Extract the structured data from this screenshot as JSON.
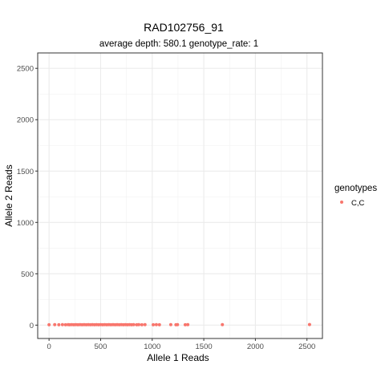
{
  "chart_data": {
    "type": "scatter",
    "title": "RAD102756_91",
    "subtitle": "average depth:  580.1  genotype_rate:  1",
    "xlabel": "Allele 1 Reads",
    "ylabel": "Allele 2 Reads",
    "xlim": [
      -110,
      2650
    ],
    "ylim": [
      -130,
      2650
    ],
    "x_ticks": [
      0,
      500,
      1000,
      1500,
      2000,
      2500
    ],
    "y_ticks": [
      0,
      500,
      1000,
      1500,
      2000,
      2500
    ],
    "x_tick_labels": [
      "0",
      "500",
      "1000",
      "1500",
      "2000",
      "2500"
    ],
    "y_tick_labels": [
      "0",
      "500",
      "1000",
      "1500",
      "2000",
      "2500"
    ],
    "grid": true,
    "legend": {
      "title": "genotypes",
      "position": "right",
      "entries": [
        {
          "label": "C,C",
          "color": "#F8766D"
        }
      ]
    },
    "series": [
      {
        "name": "C,C",
        "color": "#F8766D",
        "points": [
          [
            0,
            4
          ],
          [
            55,
            5
          ],
          [
            95,
            4
          ],
          [
            130,
            5
          ],
          [
            160,
            4
          ],
          [
            185,
            5
          ],
          [
            200,
            4
          ],
          [
            220,
            5
          ],
          [
            240,
            4
          ],
          [
            260,
            5
          ],
          [
            280,
            4
          ],
          [
            300,
            5
          ],
          [
            320,
            4
          ],
          [
            340,
            5
          ],
          [
            360,
            4
          ],
          [
            380,
            5
          ],
          [
            400,
            4
          ],
          [
            420,
            5
          ],
          [
            440,
            4
          ],
          [
            460,
            5
          ],
          [
            480,
            4
          ],
          [
            500,
            5
          ],
          [
            520,
            4
          ],
          [
            540,
            5
          ],
          [
            560,
            4
          ],
          [
            580,
            5
          ],
          [
            600,
            4
          ],
          [
            620,
            5
          ],
          [
            640,
            4
          ],
          [
            660,
            5
          ],
          [
            680,
            4
          ],
          [
            700,
            5
          ],
          [
            720,
            4
          ],
          [
            740,
            5
          ],
          [
            760,
            4
          ],
          [
            780,
            5
          ],
          [
            800,
            4
          ],
          [
            820,
            5
          ],
          [
            850,
            4
          ],
          [
            870,
            5
          ],
          [
            900,
            4
          ],
          [
            930,
            5
          ],
          [
            1010,
            4
          ],
          [
            1040,
            5
          ],
          [
            1070,
            4
          ],
          [
            1180,
            5
          ],
          [
            1230,
            4
          ],
          [
            1245,
            5
          ],
          [
            1320,
            4
          ],
          [
            1345,
            5
          ],
          [
            1680,
            5
          ],
          [
            2525,
            6
          ]
        ]
      }
    ]
  }
}
